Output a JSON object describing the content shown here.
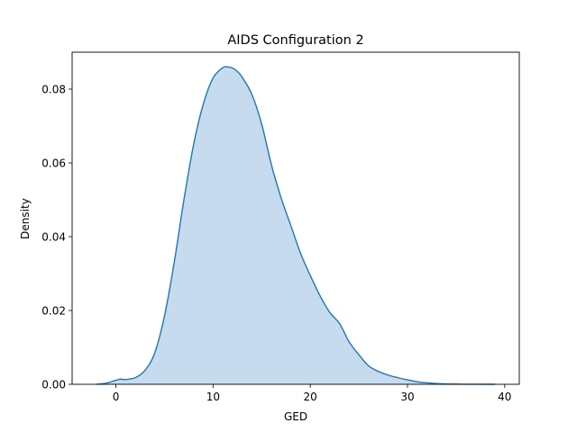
{
  "chart_data": {
    "type": "area",
    "title": "AIDS Configuration 2",
    "xlabel": "GED",
    "ylabel": "Density",
    "xlim": [
      -4.5,
      41.5
    ],
    "ylim": [
      0,
      0.09
    ],
    "xticks": [
      0,
      10,
      20,
      30,
      40
    ],
    "yticks": [
      0.0,
      0.02,
      0.04,
      0.06,
      0.08
    ],
    "xtick_labels": [
      "0",
      "10",
      "20",
      "30",
      "40"
    ],
    "ytick_labels": [
      "0.00",
      "0.02",
      "0.04",
      "0.06",
      "0.08"
    ],
    "grid": false,
    "legend": "none",
    "colors": {
      "line": "#1f77b4",
      "fill": "#c6dbee"
    },
    "series": [
      {
        "x": [
          -2,
          -1,
          0,
          0.5,
          1,
          2,
          3,
          4,
          5,
          6,
          7,
          8,
          9,
          10,
          11,
          11.5,
          12,
          12.5,
          13,
          14,
          15,
          16,
          17,
          18,
          19,
          20,
          21,
          22,
          23,
          24,
          25,
          26,
          27,
          28,
          29,
          30,
          31,
          32,
          33,
          34,
          36,
          39
        ],
        "y": [
          0.0,
          0.0003,
          0.0011,
          0.0014,
          0.0013,
          0.0018,
          0.0038,
          0.0085,
          0.0185,
          0.033,
          0.05,
          0.065,
          0.076,
          0.083,
          0.0858,
          0.086,
          0.0857,
          0.0848,
          0.0832,
          0.0785,
          0.0705,
          0.0595,
          0.0505,
          0.043,
          0.0355,
          0.0295,
          0.024,
          0.0195,
          0.0165,
          0.0115,
          0.008,
          0.005,
          0.0035,
          0.0025,
          0.0018,
          0.0012,
          0.0007,
          0.0004,
          0.0002,
          0.0001,
          2e-05,
          0.0
        ]
      }
    ]
  }
}
